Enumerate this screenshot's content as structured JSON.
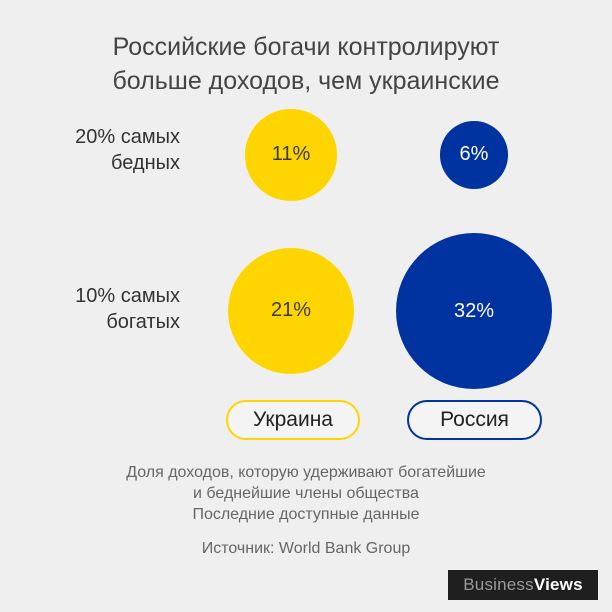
{
  "title": [
    "Российские богачи контролируют",
    "больше доходов, чем украинские"
  ],
  "chart_data": {
    "type": "bubble",
    "categories": [
      [
        "20% самых",
        "бедных"
      ],
      [
        "10% самых",
        "богатых"
      ]
    ],
    "series": [
      {
        "name": "Украина",
        "values": [
          11,
          21
        ],
        "labels": [
          "11%",
          "21%"
        ],
        "color": "#ffd500"
      },
      {
        "name": "Россия",
        "values": [
          6,
          32
        ],
        "labels": [
          "6%",
          "32%"
        ],
        "color": "#0033a0"
      }
    ],
    "unit": "%"
  },
  "legend": {
    "ukraine": "Украина",
    "russia": "Россия"
  },
  "note": [
    "Доля доходов, которую удерживают богатейшие",
    "и беднейшие члены общества",
    "Последние доступные данные"
  ],
  "source": "Источник: World Bank Group",
  "brand": {
    "part1": "Business",
    "part2": "Views"
  },
  "colors": {
    "ukraine": "#ffd500",
    "russia": "#0033a0",
    "background": "#efefef"
  }
}
